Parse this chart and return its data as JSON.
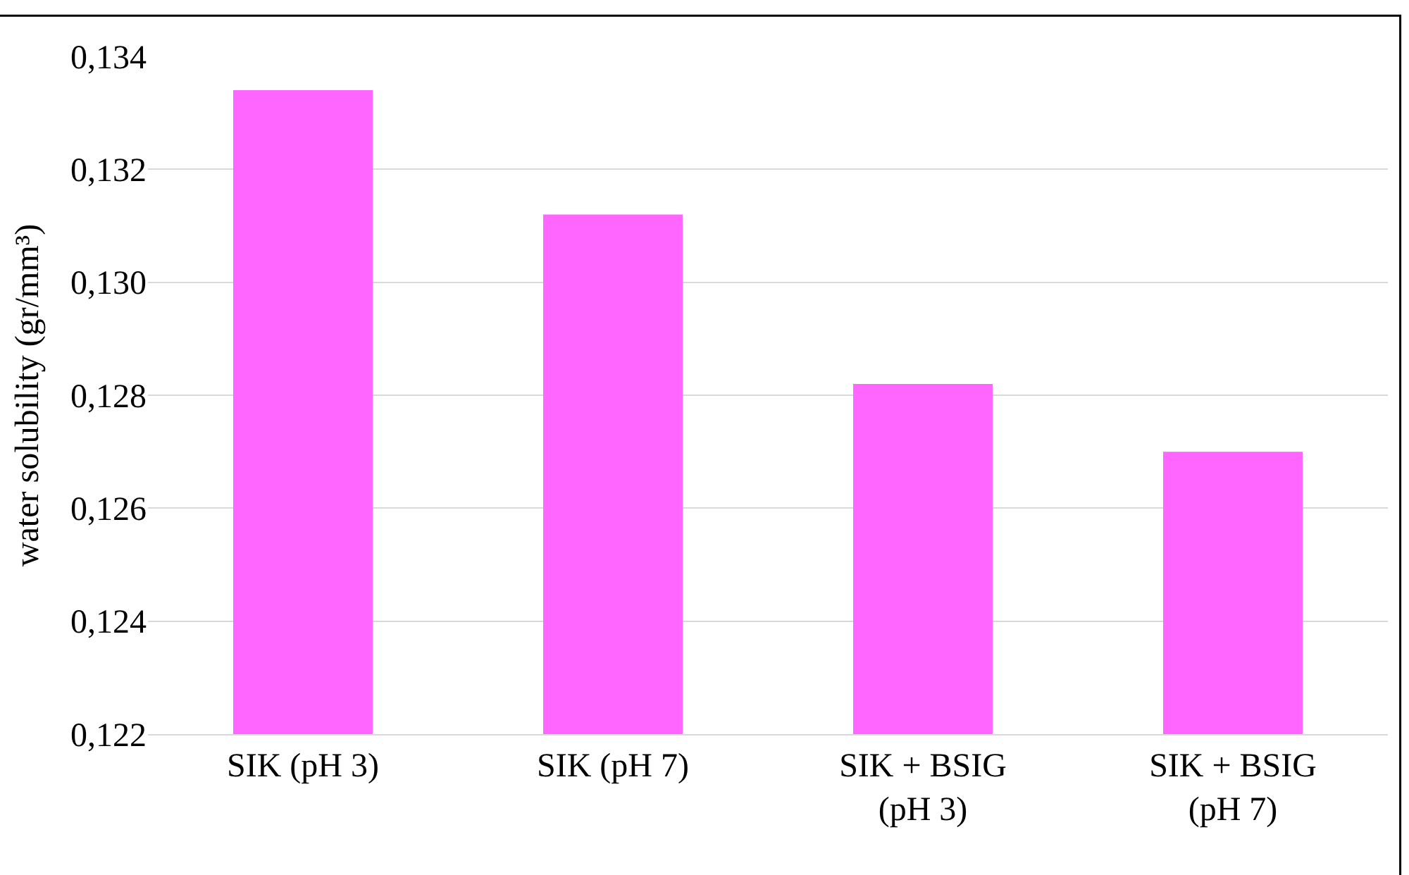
{
  "chart_data": {
    "type": "bar",
    "ylabel": "water solubility (gr/mm³)",
    "categories": [
      "SIK (pH 3)",
      "SIK (pH 7)",
      "SIK + BSIG\n(pH 3)",
      "SIK + BSIG\n(pH 7)"
    ],
    "values": [
      0.1334,
      0.1312,
      0.1282,
      0.127
    ],
    "color": "#ff66ff",
    "ylim": [
      0.122,
      0.134
    ],
    "yticks": [
      {
        "value": 0.122,
        "label": "0,122"
      },
      {
        "value": 0.124,
        "label": "0,124"
      },
      {
        "value": 0.126,
        "label": "0,126"
      },
      {
        "value": 0.128,
        "label": "0,128"
      },
      {
        "value": 0.13,
        "label": "0,130"
      },
      {
        "value": 0.132,
        "label": "0,132"
      },
      {
        "value": 0.134,
        "label": "0,134"
      }
    ],
    "grid": "y"
  }
}
